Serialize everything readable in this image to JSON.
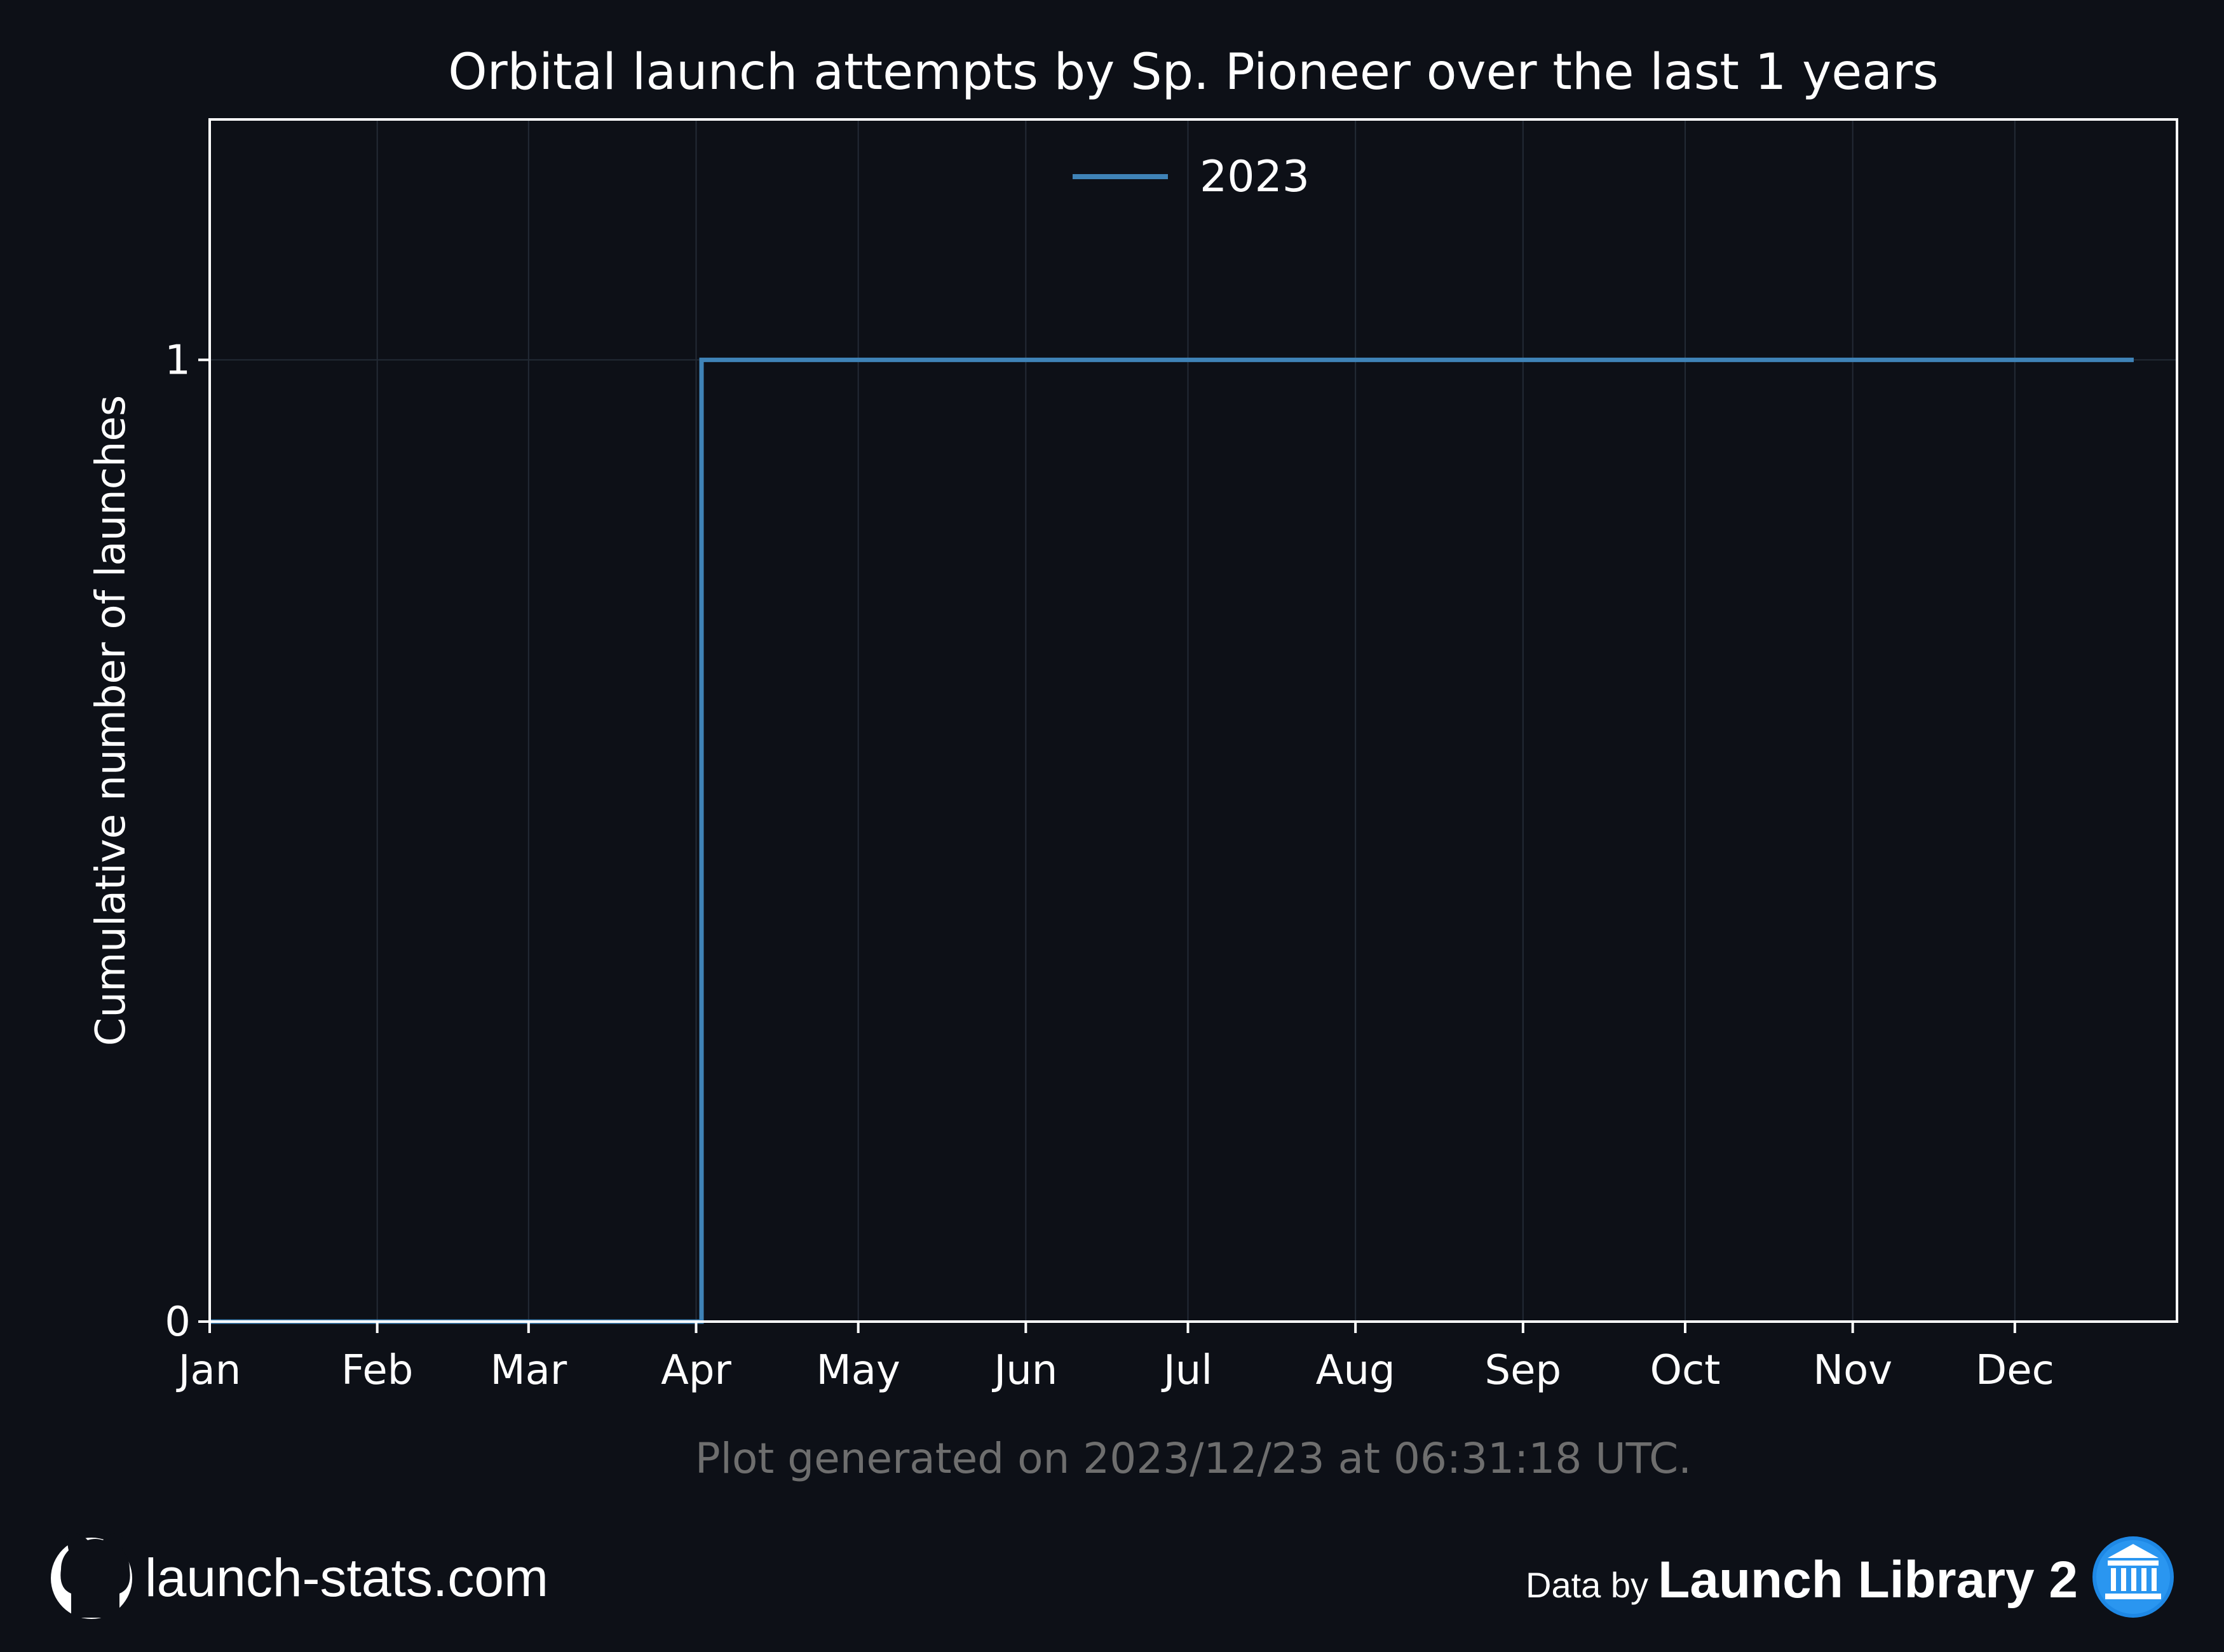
{
  "chart_data": {
    "type": "line",
    "title": "Orbital launch attempts by Sp. Pioneer over the last 1 years",
    "xlabel": "",
    "ylabel": "Cumulative number of launches",
    "x_tick_labels": [
      "Jan",
      "Feb",
      "Mar",
      "Apr",
      "May",
      "Jun",
      "Jul",
      "Aug",
      "Sep",
      "Oct",
      "Nov",
      "Dec"
    ],
    "y_ticks": [
      0,
      1
    ],
    "ylim": [
      0,
      1.25
    ],
    "xlim": [
      "2023-01-01",
      "2023-12-31"
    ],
    "grid": true,
    "legend_position": "upper center",
    "step": true,
    "series": [
      {
        "name": "2023",
        "color": "#3f83b7",
        "points": [
          {
            "x": "2023-01-01",
            "y": 0
          },
          {
            "x": "2023-04-02",
            "y": 1
          },
          {
            "x": "2023-12-23",
            "y": 1
          }
        ]
      }
    ]
  },
  "footer": {
    "generated": "Plot generated on 2023/12/23 at 06:31:18 UTC.",
    "site": "launch-stats.com",
    "data_by": "Data by",
    "source": "Launch Library 2"
  },
  "icons": {
    "site_icon": "github-icon",
    "source_icon": "launch-library-icon"
  },
  "colors": {
    "background": "#0d1017",
    "axes_edge": "#ffffff",
    "grid": "#232a35",
    "series_2023": "#3f83b7",
    "footer_text": "#6e6e6e",
    "source_icon": "#1e88e5"
  }
}
